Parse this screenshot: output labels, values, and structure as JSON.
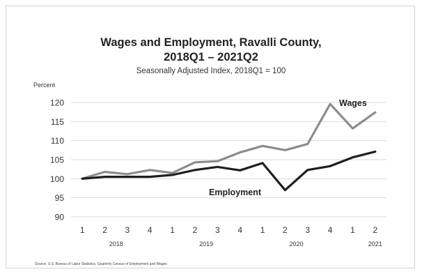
{
  "chart_data": {
    "type": "line",
    "title_line1": "Wages and Employment, Ravalli County,",
    "title_line2": "2018Q1 – 2021Q2",
    "subtitle": "Seasonally Adjusted Index, 2018Q1 = 100",
    "ylabel": "Percent",
    "ylim": [
      90,
      120
    ],
    "yticks": [
      "90",
      "95",
      "100",
      "105",
      "110",
      "115",
      "120"
    ],
    "x": [
      "1",
      "2",
      "3",
      "4",
      "1",
      "2",
      "3",
      "4",
      "1",
      "2",
      "3",
      "4",
      "1",
      "2"
    ],
    "year_labels": [
      "2018",
      "2019",
      "2020",
      "2021"
    ],
    "grid": true,
    "series": [
      {
        "name": "Wages",
        "color": "#8c8c8c",
        "values": [
          100,
          101.8,
          101.2,
          102.3,
          101.5,
          104.3,
          104.6,
          106.9,
          108.6,
          107.5,
          109.1,
          119.6,
          113.2,
          117.4
        ]
      },
      {
        "name": "Employment",
        "color": "#1e1e1e",
        "values": [
          100,
          100.5,
          100.5,
          100.5,
          101.0,
          102.3,
          103.1,
          102.2,
          104.1,
          97.0,
          102.3,
          103.3,
          105.6,
          107.1
        ]
      }
    ]
  },
  "source": "Source: U.S. Bureau of Labor Statistics, Quarterly Census of Employment and Wages"
}
